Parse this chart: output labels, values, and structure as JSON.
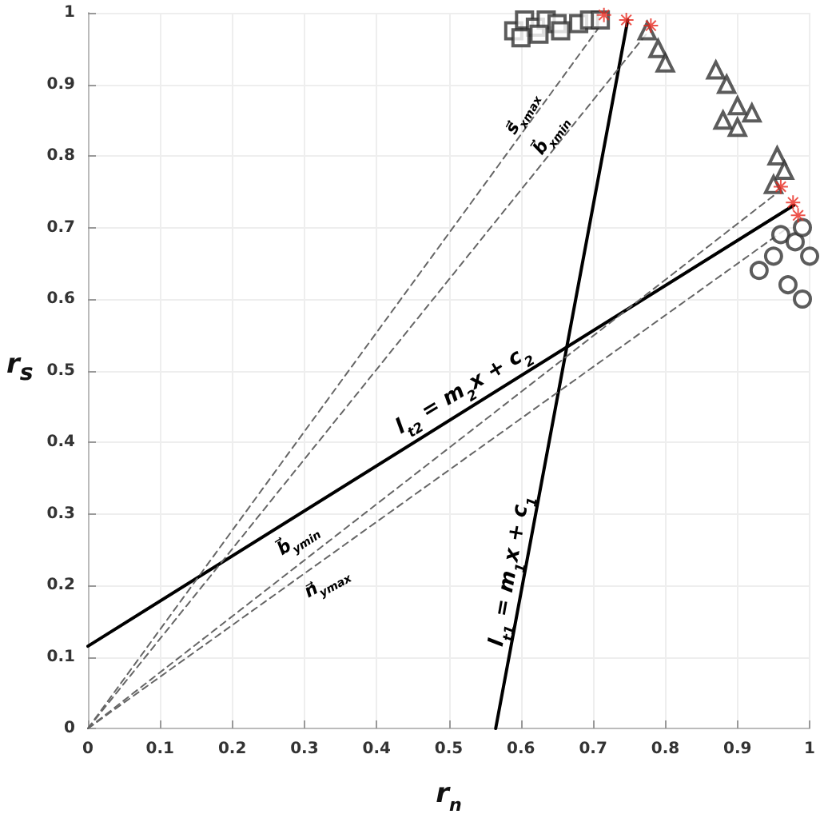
{
  "chart_data": {
    "type": "scatter",
    "xlabel": "r$_{n}$",
    "ylabel": "r$_{s}$",
    "xlim": [
      0,
      1
    ],
    "ylim": [
      0,
      1
    ],
    "xticks": [
      0,
      0.1,
      0.2,
      0.3,
      0.4,
      0.5,
      0.6,
      0.7,
      0.8,
      0.9,
      1
    ],
    "yticks": [
      0,
      0.1,
      0.2,
      0.3,
      0.4,
      0.5,
      0.6,
      0.7,
      0.8,
      0.9,
      1
    ],
    "grid": true,
    "series": [
      {
        "marker": "square",
        "color": "#333333",
        "x": [
          0.59,
          0.605,
          0.62,
          0.635,
          0.65,
          0.68,
          0.695,
          0.71,
          0.6,
          0.625,
          0.655
        ],
        "values": [
          0.975,
          0.99,
          0.98,
          0.99,
          0.985,
          0.985,
          0.99,
          0.99,
          0.965,
          0.97,
          0.975
        ]
      },
      {
        "marker": "triangle",
        "color": "#333333",
        "x": [
          0.775,
          0.79,
          0.8,
          0.87,
          0.885,
          0.9,
          0.88,
          0.9,
          0.92,
          0.955,
          0.965,
          0.95
        ],
        "values": [
          0.975,
          0.95,
          0.93,
          0.92,
          0.9,
          0.87,
          0.85,
          0.84,
          0.86,
          0.8,
          0.78,
          0.76
        ]
      },
      {
        "marker": "circle",
        "color": "#333333",
        "x": [
          0.93,
          0.95,
          0.97,
          0.99,
          0.96,
          0.98,
          1,
          0.99
        ],
        "values": [
          0.64,
          0.66,
          0.62,
          0.6,
          0.69,
          0.68,
          0.66,
          0.7
        ]
      },
      {
        "marker": "cross",
        "color": "#e8281e",
        "x": [
          0.715,
          0.746,
          0.78,
          0.96,
          0.977,
          0.984
        ],
        "values": [
          0.997,
          0.99,
          0.982,
          0.757,
          0.735,
          0.717
        ]
      },
      {
        "type": "line",
        "color": "#000000",
        "line_style": "solid",
        "x": [
          0.565,
          0.748
        ],
        "values": [
          0,
          0.99
        ]
      },
      {
        "type": "line",
        "color": "#000000",
        "line_style": "solid",
        "x": [
          0,
          0.978
        ],
        "values": [
          0.115,
          0.731
        ]
      },
      {
        "type": "line",
        "color": "#666666",
        "line_style": "dashed",
        "x": [
          0,
          0.707
        ],
        "values": [
          0,
          0.978
        ]
      },
      {
        "type": "line",
        "color": "#666666",
        "line_style": "dashed",
        "x": [
          0,
          0.775
        ],
        "values": [
          0,
          0.972
        ]
      },
      {
        "type": "line",
        "color": "#666666",
        "line_style": "dashed",
        "x": [
          0,
          0.952
        ],
        "values": [
          0,
          0.746
        ]
      },
      {
        "type": "line",
        "color": "#666666",
        "line_style": "dashed",
        "x": [
          0,
          0.97
        ],
        "values": [
          0,
          0.7
        ]
      }
    ],
    "annotations": [
      "l$_{t2}$ = m$_{2}$x + c$_{2}$",
      "l$_{t1}$ = m$_{1}$x + c$_{1}$",
      "s⃗$_{xmax}$",
      "b⃗$_{xmin}$",
      "b⃗$_{ymin}$",
      "n⃗$_{ymax}$"
    ]
  }
}
